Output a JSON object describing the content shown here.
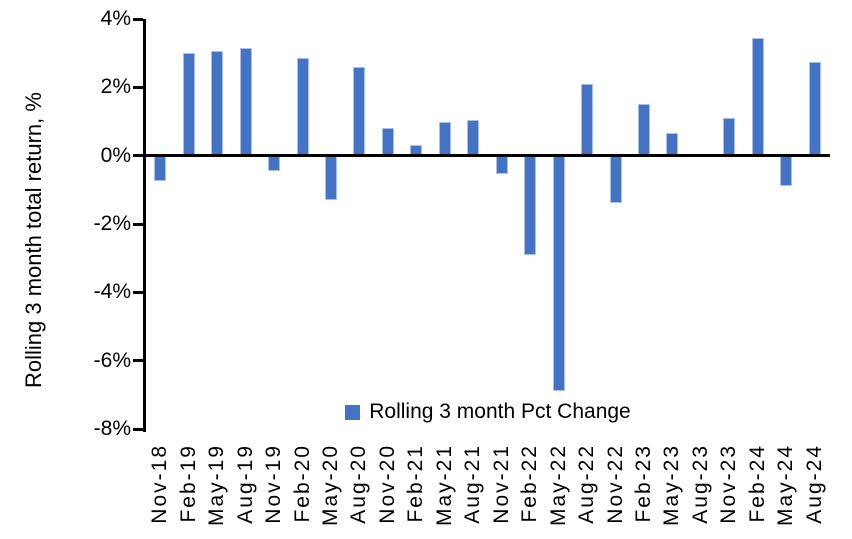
{
  "chart_data": {
    "type": "bar",
    "title": "",
    "ylabel": "Rolling 3 month total return, %",
    "xlabel": "",
    "legend_label": "Rolling 3 month Pct Change",
    "legend_position": "bottom-center",
    "grid": false,
    "ylim": [
      -8,
      4
    ],
    "yticks": [
      {
        "label": "4%",
        "value": 4
      },
      {
        "label": "2%",
        "value": 2
      },
      {
        "label": "0%",
        "value": 0
      },
      {
        "label": "-2%",
        "value": -2
      },
      {
        "label": "-4%",
        "value": -4
      },
      {
        "label": "-6%",
        "value": -6
      },
      {
        "label": "-8%",
        "value": -8
      }
    ],
    "categories": [
      "Nov-18",
      "Feb-19",
      "May-19",
      "Aug-19",
      "Nov-19",
      "Feb-20",
      "May-20",
      "Aug-20",
      "Nov-20",
      "Feb-21",
      "May-21",
      "Aug-21",
      "Nov-21",
      "Feb-22",
      "May-22",
      "Aug-22",
      "Nov-22",
      "Feb-23",
      "May-23",
      "Aug-23",
      "Nov-23",
      "Feb-24",
      "May-24",
      "Aug-24"
    ],
    "values": [
      -0.75,
      3.0,
      3.05,
      3.15,
      -0.45,
      2.85,
      -1.3,
      2.6,
      0.8,
      0.3,
      1.0,
      1.05,
      -0.55,
      -2.9,
      -6.9,
      2.1,
      -1.4,
      1.5,
      0.65,
      0,
      1.1,
      3.45,
      -0.9,
      2.75
    ],
    "bar_color": "#4472C4",
    "bar_border_color": "#A9C0E8",
    "axis_color": "#000000",
    "text_color": "#000000"
  }
}
